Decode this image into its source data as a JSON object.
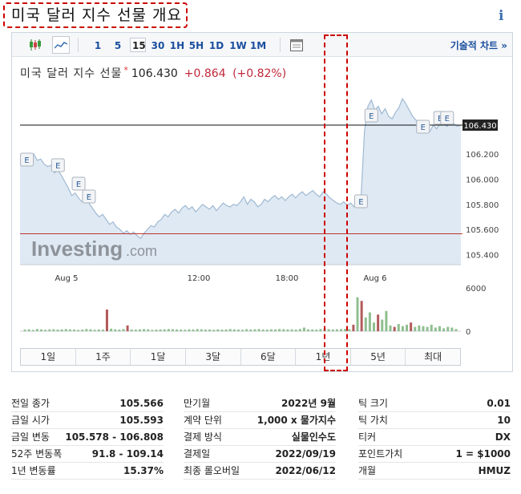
{
  "page": {
    "title": "미국 달러 지수 선물 개요",
    "info_icon": "i"
  },
  "toolbar": {
    "timeframes": [
      "1",
      "5",
      "15",
      "30",
      "1H",
      "5H",
      "1D",
      "1W",
      "1M"
    ],
    "active_timeframe": "15",
    "advanced_chart": "기술적 차트 »",
    "icons": [
      "candlestick-icon",
      "line-chart-icon",
      "calendar-grid-icon"
    ]
  },
  "quote": {
    "name": "미국 달러 지수 선물",
    "star": "*",
    "price": "106.430",
    "change": "+0.864",
    "change_pct": "(+0.82%)"
  },
  "chart_data": {
    "type": "line",
    "y_ticks": [
      "106.200",
      "106.000",
      "105.800",
      "105.600",
      "105.400"
    ],
    "current_label": "106.430",
    "current_value": 106.43,
    "prev_close_value": 105.566,
    "x_ticks": [
      "Aug 5",
      "12:00",
      "18:00",
      "Aug 6"
    ],
    "ylim": [
      105.32,
      106.73
    ],
    "series": [
      {
        "values": [
          106.19,
          106.17,
          106.14,
          106.18,
          106.2,
          106.15,
          106.16,
          106.12,
          106.1,
          106.11,
          106.05,
          106.07,
          106.03,
          105.98,
          105.93,
          105.87,
          105.89,
          105.85,
          105.82,
          105.84,
          105.81,
          105.77,
          105.73,
          105.7,
          105.72,
          105.68,
          105.64,
          105.66,
          105.62,
          105.6,
          105.57,
          105.59,
          105.56,
          105.58,
          105.55,
          105.53,
          105.57,
          105.6,
          105.63,
          105.62,
          105.66,
          105.68,
          105.72,
          105.7,
          105.74,
          105.76,
          105.73,
          105.77,
          105.79,
          105.76,
          105.78,
          105.74,
          105.77,
          105.8,
          105.78,
          105.76,
          105.79,
          105.75,
          105.78,
          105.81,
          105.79,
          105.78,
          105.8,
          105.79,
          105.82,
          105.86,
          105.8,
          105.84,
          105.82,
          105.78,
          105.8,
          105.84,
          105.82,
          105.85,
          105.87,
          105.84,
          105.86,
          105.83,
          105.86,
          105.88,
          105.85,
          105.88,
          105.9,
          105.87,
          105.89,
          105.91,
          105.88,
          105.86,
          105.9,
          105.88,
          105.85,
          105.83,
          105.81,
          105.8,
          105.82,
          105.79,
          105.81,
          105.78,
          105.8,
          105.85,
          106.38,
          106.58,
          106.63,
          106.55,
          106.58,
          106.52,
          106.56,
          106.5,
          106.48,
          106.53,
          106.57,
          106.64,
          106.6,
          106.55,
          106.5,
          106.47,
          106.44,
          106.45,
          106.41,
          106.38,
          106.43,
          106.4,
          106.45,
          106.44,
          106.42,
          106.46,
          106.44,
          106.42,
          106.43
        ]
      }
    ],
    "volume_ticks": [
      "6000",
      "0"
    ],
    "volume_max": 6000,
    "volume": [
      220,
      260,
      180,
      300,
      240,
      200,
      260,
      280,
      220,
      250,
      300,
      260,
      240,
      180,
      220,
      300,
      260,
      200,
      240,
      220,
      3000,
      350,
      260,
      220,
      300,
      800,
      240,
      220,
      260,
      300,
      260,
      180,
      220,
      240,
      260,
      300,
      280,
      240,
      220,
      200,
      260,
      240,
      300,
      260,
      220,
      240,
      200,
      260,
      220,
      240,
      300,
      260,
      220,
      200,
      280,
      240,
      260,
      300,
      240,
      220,
      260,
      240,
      300,
      280,
      240,
      260,
      220,
      300,
      500,
      260,
      240,
      220,
      300,
      360,
      280,
      240,
      260,
      300,
      320,
      280,
      900,
      4700,
      4200,
      1900,
      2600,
      1200,
      2300,
      1600,
      2800,
      800,
      600,
      1000,
      700,
      900,
      1200,
      600,
      800,
      700,
      600,
      900,
      500,
      700,
      400,
      600,
      500,
      300
    ],
    "volume_colors_red_idx": [
      20,
      25,
      80,
      82,
      86,
      90,
      94
    ],
    "event_labels": [
      "E",
      "E",
      "E",
      "E",
      "E",
      "E",
      "E",
      "E"
    ]
  },
  "periods": [
    "1일",
    "1주",
    "1달",
    "3달",
    "6달",
    "1년",
    "5년",
    "최대"
  ],
  "stats": [
    [
      {
        "k": "전일 종가",
        "v": "105.566"
      },
      {
        "k": "금일 시가",
        "v": "105.593"
      },
      {
        "k": "금일 변동",
        "v": "105.578 - 106.808"
      },
      {
        "k": "52주 변동폭",
        "v": "91.8 - 109.14"
      },
      {
        "k": "1년 변동률",
        "v": "15.37%"
      }
    ],
    [
      {
        "k": "만기월",
        "v": "2022년 9월"
      },
      {
        "k": "계약 단위",
        "v": "1,000 x 물가지수"
      },
      {
        "k": "결제 방식",
        "v": "실물인수도"
      },
      {
        "k": "결제일",
        "v": "2022/09/19"
      },
      {
        "k": "최종 롤오버일",
        "v": "2022/06/12"
      }
    ],
    [
      {
        "k": "틱 크기",
        "v": "0.01"
      },
      {
        "k": "틱 가치",
        "v": "10"
      },
      {
        "k": "티커",
        "v": "DX"
      },
      {
        "k": "포인트가치",
        "v": "1 = $1000"
      },
      {
        "k": "개월",
        "v": "HMUZ"
      }
    ]
  ]
}
